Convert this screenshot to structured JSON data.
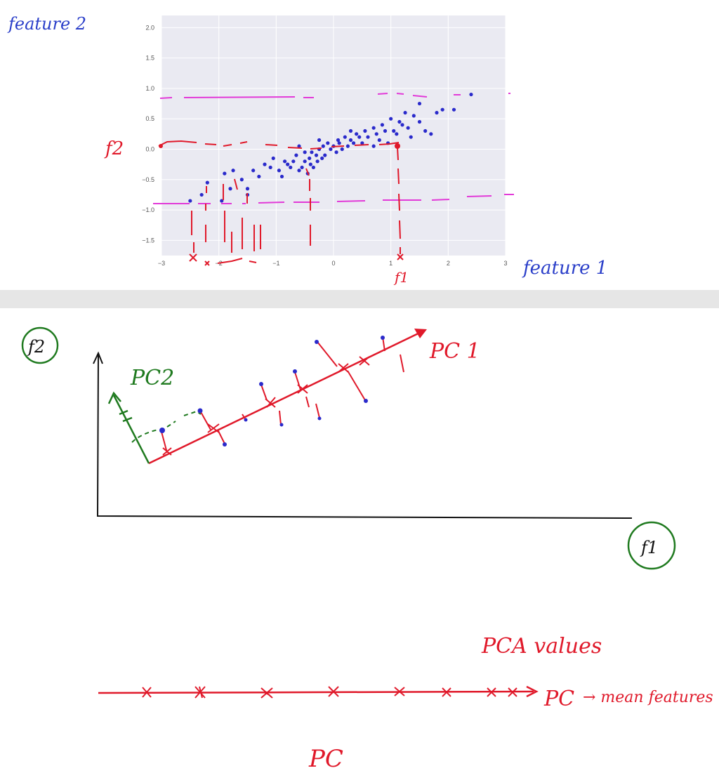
{
  "scatter_chart": {
    "chart_data": {
      "type": "scatter",
      "xlim": [
        -3,
        3
      ],
      "ylim": [
        -1.75,
        2.2
      ],
      "x_ticks": [
        "−3",
        "−2",
        "−1",
        "0",
        "1",
        "2",
        "3"
      ],
      "y_ticks": [
        "2.0",
        "1.5",
        "1.0",
        "0.5",
        "0.0",
        "−0.5",
        "−1.0",
        "−1.5"
      ],
      "x_tick_values": [
        -3,
        -2,
        -1,
        0,
        1,
        2,
        3
      ],
      "y_tick_values": [
        2.0,
        1.5,
        1.0,
        0.5,
        0.0,
        -0.5,
        -1.0,
        -1.5
      ],
      "grid": true,
      "point_color": "#2a2acb",
      "points": [
        [
          -2.5,
          -0.85
        ],
        [
          -2.2,
          -0.55
        ],
        [
          -1.9,
          -0.4
        ],
        [
          -1.95,
          -0.85
        ],
        [
          -1.8,
          -0.65
        ],
        [
          -1.5,
          -0.75
        ],
        [
          -1.5,
          -0.65
        ],
        [
          -1.3,
          -0.45
        ],
        [
          -1.2,
          -0.25
        ],
        [
          -1.1,
          -0.3
        ],
        [
          -1.05,
          -0.15
        ],
        [
          -0.95,
          -0.35
        ],
        [
          -0.9,
          -0.45
        ],
        [
          -0.85,
          -0.2
        ],
        [
          -0.8,
          -0.25
        ],
        [
          -0.75,
          -0.3
        ],
        [
          -0.7,
          -0.2
        ],
        [
          -0.65,
          -0.1
        ],
        [
          -0.6,
          -0.35
        ],
        [
          -0.55,
          -0.3
        ],
        [
          -0.5,
          -0.2
        ],
        [
          -0.5,
          -0.05
        ],
        [
          -0.45,
          -0.4
        ],
        [
          -0.42,
          -0.15
        ],
        [
          -0.4,
          -0.25
        ],
        [
          -0.38,
          -0.05
        ],
        [
          -0.35,
          -0.3
        ],
        [
          -0.3,
          -0.1
        ],
        [
          -0.28,
          -0.2
        ],
        [
          -0.25,
          0.0
        ],
        [
          -0.2,
          -0.15
        ],
        [
          -0.18,
          0.05
        ],
        [
          -0.15,
          -0.1
        ],
        [
          -0.1,
          0.1
        ],
        [
          -0.05,
          0.0
        ],
        [
          0.0,
          0.05
        ],
        [
          0.05,
          -0.05
        ],
        [
          0.08,
          0.15
        ],
        [
          0.1,
          0.1
        ],
        [
          0.15,
          0.0
        ],
        [
          0.2,
          0.2
        ],
        [
          0.25,
          0.05
        ],
        [
          0.3,
          0.15
        ],
        [
          0.35,
          0.1
        ],
        [
          0.4,
          0.25
        ],
        [
          0.45,
          0.2
        ],
        [
          0.5,
          0.1
        ],
        [
          0.55,
          0.3
        ],
        [
          0.6,
          0.2
        ],
        [
          0.7,
          0.35
        ],
        [
          0.75,
          0.25
        ],
        [
          0.8,
          0.15
        ],
        [
          0.85,
          0.4
        ],
        [
          0.9,
          0.3
        ],
        [
          0.95,
          0.1
        ],
        [
          1.0,
          0.5
        ],
        [
          1.05,
          0.3
        ],
        [
          1.1,
          0.25
        ],
        [
          1.15,
          0.45
        ],
        [
          1.2,
          0.4
        ],
        [
          1.25,
          0.6
        ],
        [
          1.3,
          0.35
        ],
        [
          1.4,
          0.55
        ],
        [
          1.5,
          0.45
        ],
        [
          1.5,
          0.75
        ],
        [
          1.6,
          0.3
        ],
        [
          1.7,
          0.25
        ],
        [
          1.8,
          0.6
        ],
        [
          1.9,
          0.65
        ],
        [
          2.1,
          0.65
        ],
        [
          2.4,
          0.9
        ],
        [
          -1.75,
          -0.35
        ],
        [
          -1.4,
          -0.35
        ],
        [
          -1.6,
          -0.5
        ],
        [
          -0.25,
          0.15
        ],
        [
          0.3,
          0.3
        ],
        [
          -0.6,
          0.05
        ],
        [
          0.7,
          0.05
        ],
        [
          1.35,
          0.2
        ],
        [
          -2.3,
          -0.75
        ]
      ]
    },
    "highlight_point": [
      1.0,
      0.08
    ]
  },
  "annotations": {
    "feature2": "feature 2",
    "feature1": "feature 1",
    "f2": "f2",
    "f1": "f1"
  },
  "pc_diagram": {
    "f2_label": "f2",
    "f1_label": "f1",
    "pc1_label": "PC 1",
    "pc2_label": "PC2",
    "pca_values_label": "PCA values",
    "pc_line_label": "PC",
    "arrow_label": "→ mean features",
    "pc_bottom_label": "PC"
  }
}
